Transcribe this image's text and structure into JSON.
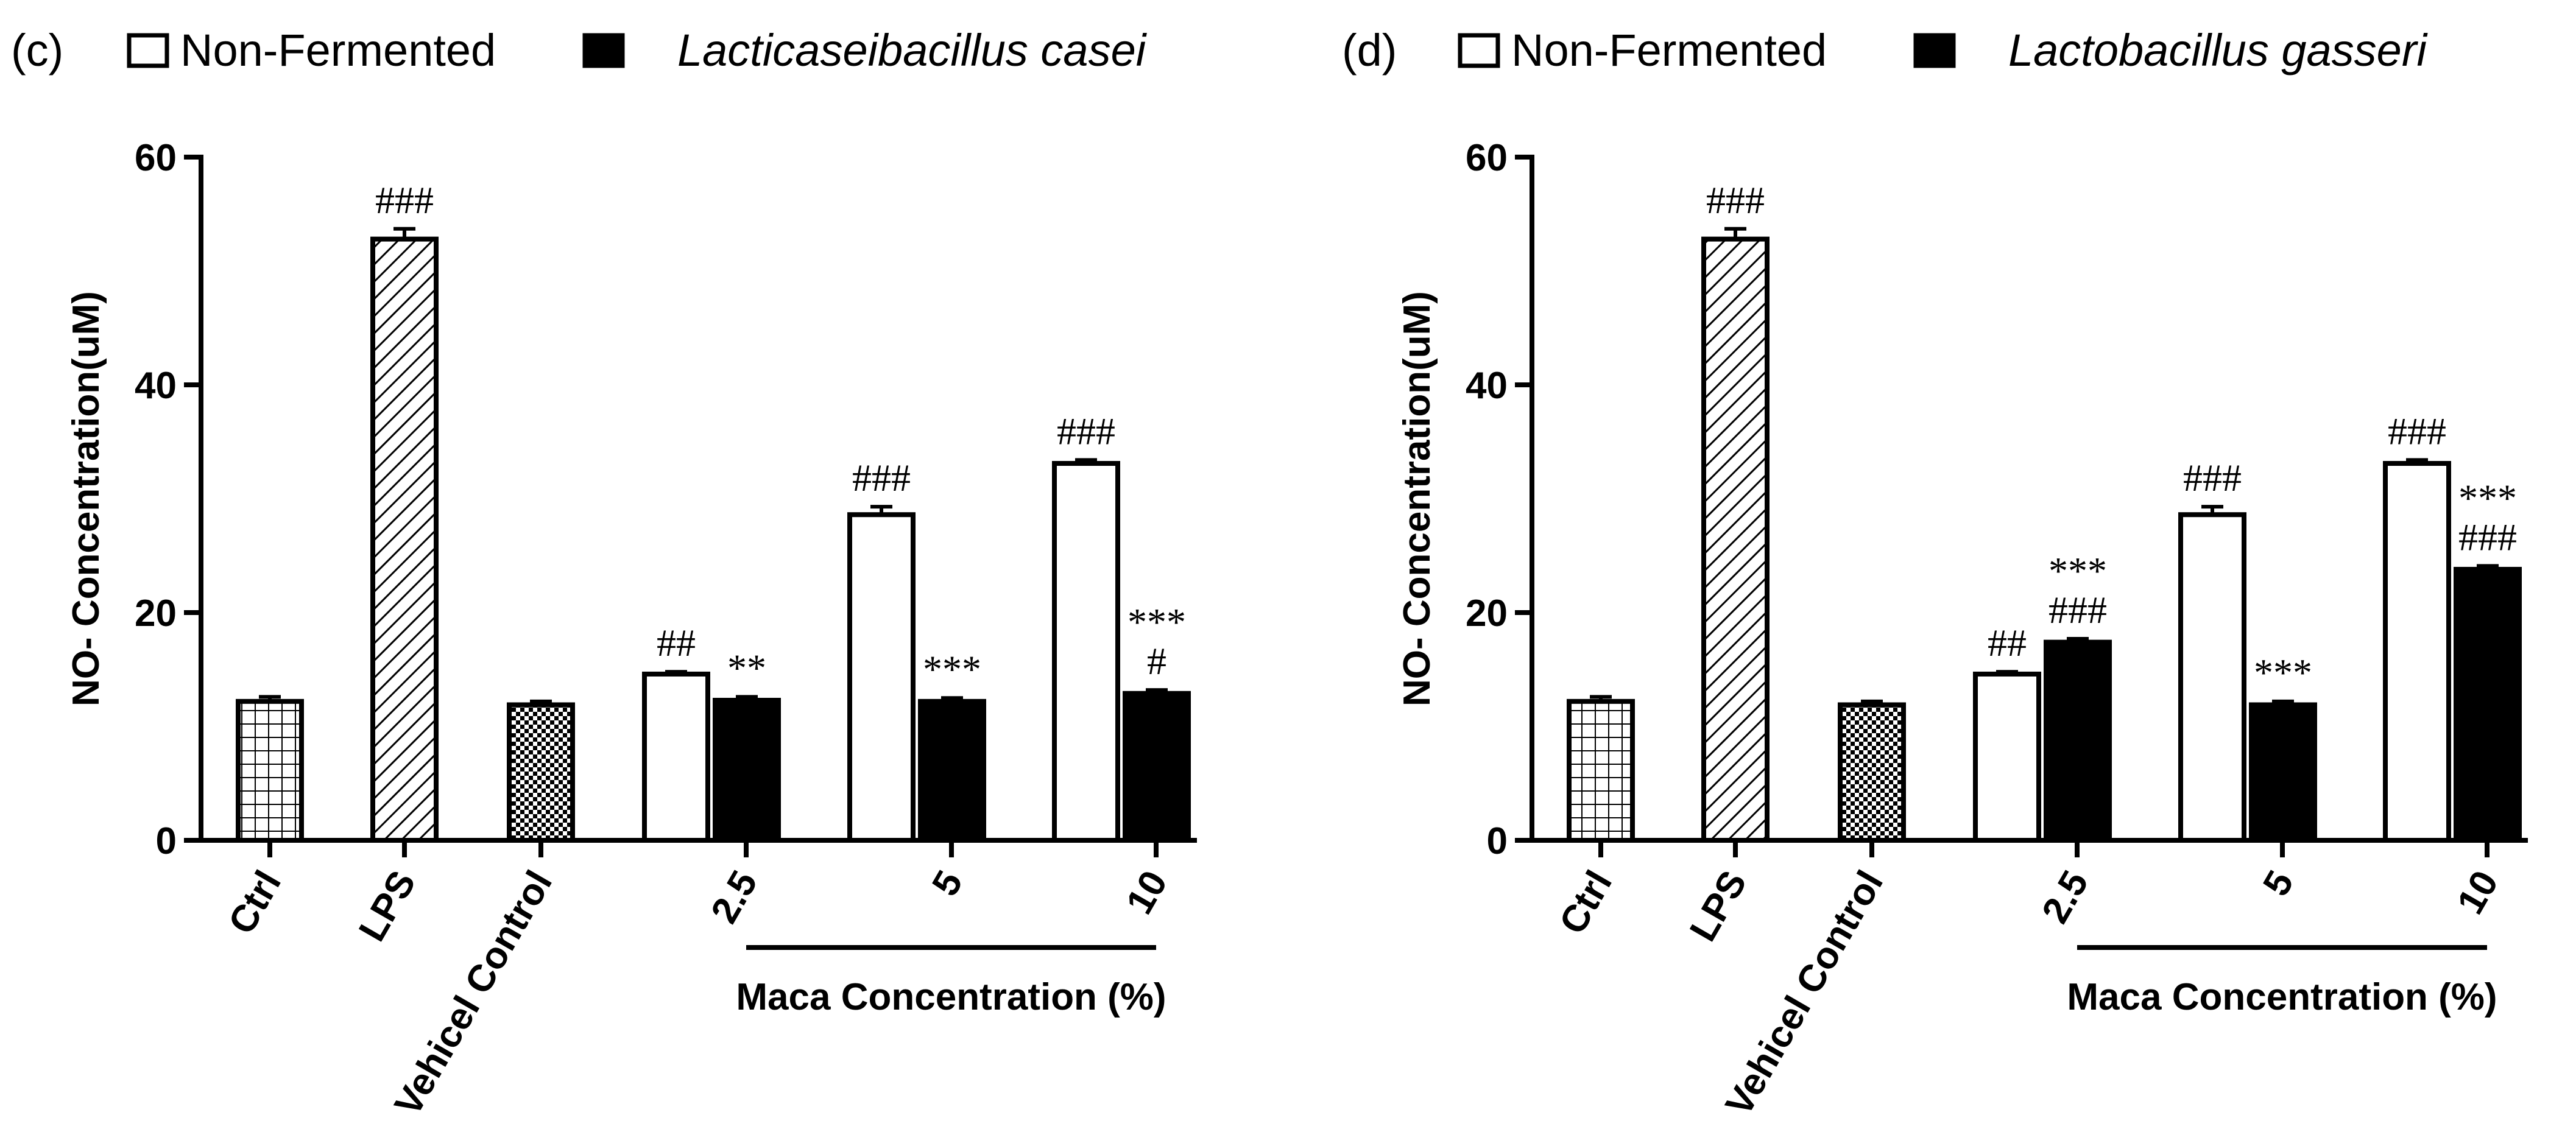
{
  "chart_data": [
    {
      "type": "bar",
      "panel_label": "(c)",
      "legend": [
        "Non-Fermented",
        "Lacticaseibacillus casei"
      ],
      "ylabel": "NO- Concentration(uM)",
      "xlabel": "Maca Concentration (%)",
      "ylim": [
        0,
        60
      ],
      "yticks": [
        "0",
        "20",
        "40",
        "60"
      ],
      "controls": [
        {
          "label": "Ctrl",
          "value": 12.2,
          "error": 0.4,
          "pattern": "grid",
          "annotation": ""
        },
        {
          "label": "LPS",
          "value": 52.8,
          "error": 0.9,
          "pattern": "hatch",
          "annotation": "###"
        },
        {
          "label": "Vehicel Control",
          "value": 11.9,
          "error": 0.3,
          "pattern": "check",
          "annotation": ""
        }
      ],
      "categories": [
        "2.5",
        "5",
        "10"
      ],
      "series": [
        {
          "name": "Non-Fermented",
          "values": [
            14.6,
            28.6,
            33.1
          ],
          "errors": [
            0.2,
            0.7,
            0.3
          ],
          "annotations": [
            "##",
            "###",
            "###"
          ]
        },
        {
          "name": "Lacticaseibacillus casei",
          "values": [
            12.3,
            12.2,
            12.9
          ],
          "errors": [
            0.3,
            0.3,
            0.3
          ],
          "annotations": [
            "**",
            "***",
            "***\n#"
          ]
        }
      ]
    },
    {
      "type": "bar",
      "panel_label": "(d)",
      "legend": [
        "Non-Fermented",
        "Lactobacillus gasseri"
      ],
      "ylabel": "NO- Concentration(uM)",
      "xlabel": "Maca Concentration (%)",
      "ylim": [
        0,
        60
      ],
      "yticks": [
        "0",
        "20",
        "40",
        "60"
      ],
      "controls": [
        {
          "label": "Ctrl",
          "value": 12.2,
          "error": 0.4,
          "pattern": "grid",
          "annotation": ""
        },
        {
          "label": "LPS",
          "value": 52.8,
          "error": 0.9,
          "pattern": "hatch",
          "annotation": "###"
        },
        {
          "label": "Vehicel Control",
          "value": 11.9,
          "error": 0.3,
          "pattern": "check",
          "annotation": ""
        }
      ],
      "categories": [
        "2.5",
        "5",
        "10"
      ],
      "series": [
        {
          "name": "Non-Fermented",
          "values": [
            14.6,
            28.6,
            33.1
          ],
          "errors": [
            0.2,
            0.7,
            0.3
          ],
          "annotations": [
            "##",
            "###",
            "###"
          ]
        },
        {
          "name": "Lactobacillus gasseri",
          "values": [
            17.4,
            11.9,
            23.8
          ],
          "errors": [
            0.3,
            0.3,
            0.3
          ],
          "annotations": [
            "***\n###",
            "***",
            "***\n###"
          ]
        }
      ]
    }
  ]
}
